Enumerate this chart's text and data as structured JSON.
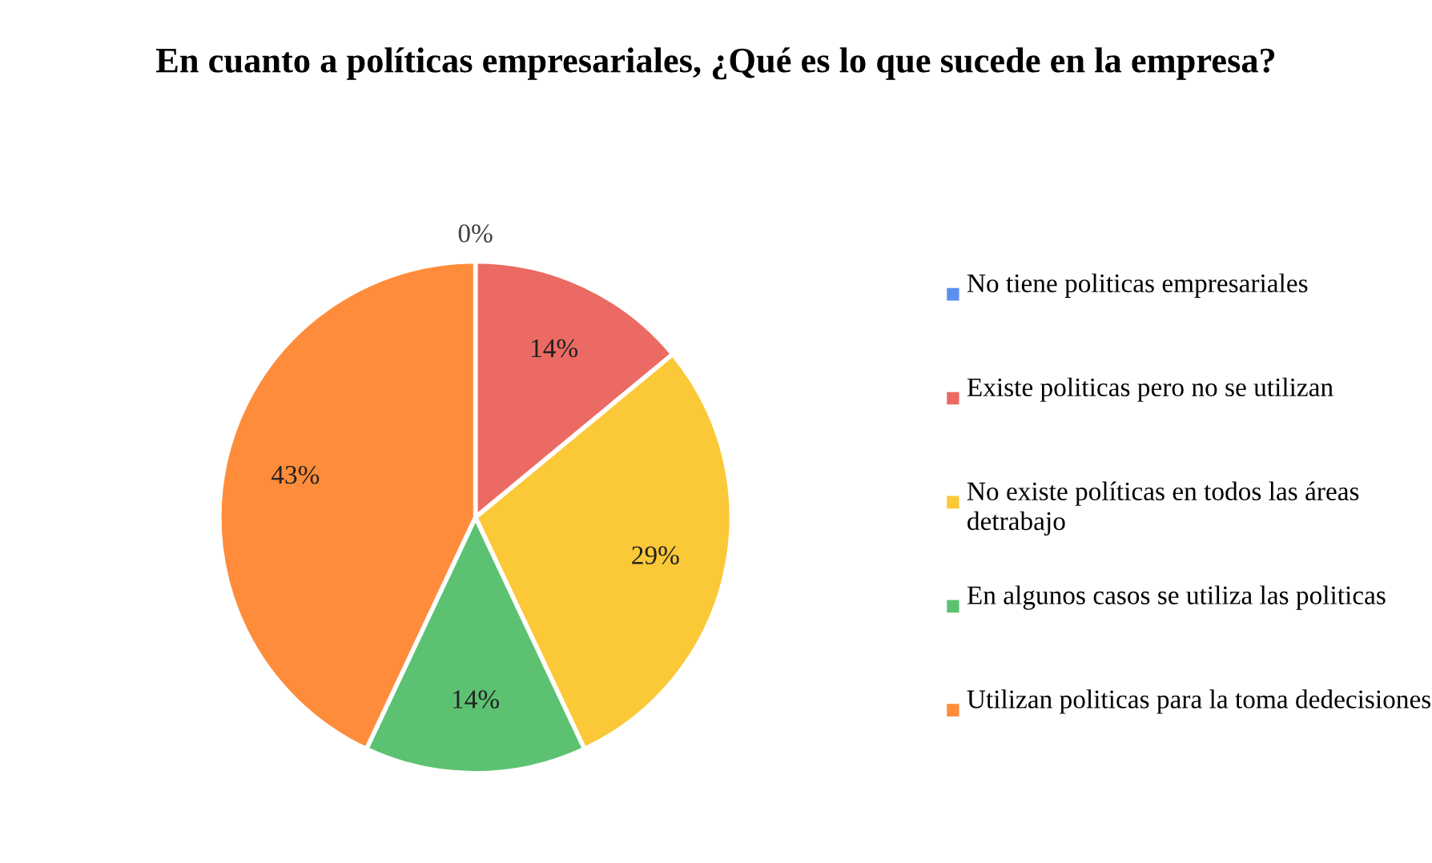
{
  "chart_data": {
    "type": "pie",
    "title": "En cuanto a políticas empresariales, ¿Qué es lo que sucede en la empresa?",
    "categories": [
      "No tiene politicas empresariales",
      "Existe politicas pero no se utilizan",
      "No existe políticas en todos las áreas detrabajo",
      "En algunos casos se utiliza las politicas",
      "Utilizan politicas para la toma dedecisiones"
    ],
    "values": [
      0,
      14,
      29,
      14,
      43
    ],
    "value_labels": [
      "0%",
      "14%",
      "29%",
      "14%",
      "43%"
    ],
    "colors": [
      "#5b8ff0",
      "#ec6a64",
      "#fbc838",
      "#5cc272",
      "#ff8c3a"
    ],
    "legend": "right"
  }
}
